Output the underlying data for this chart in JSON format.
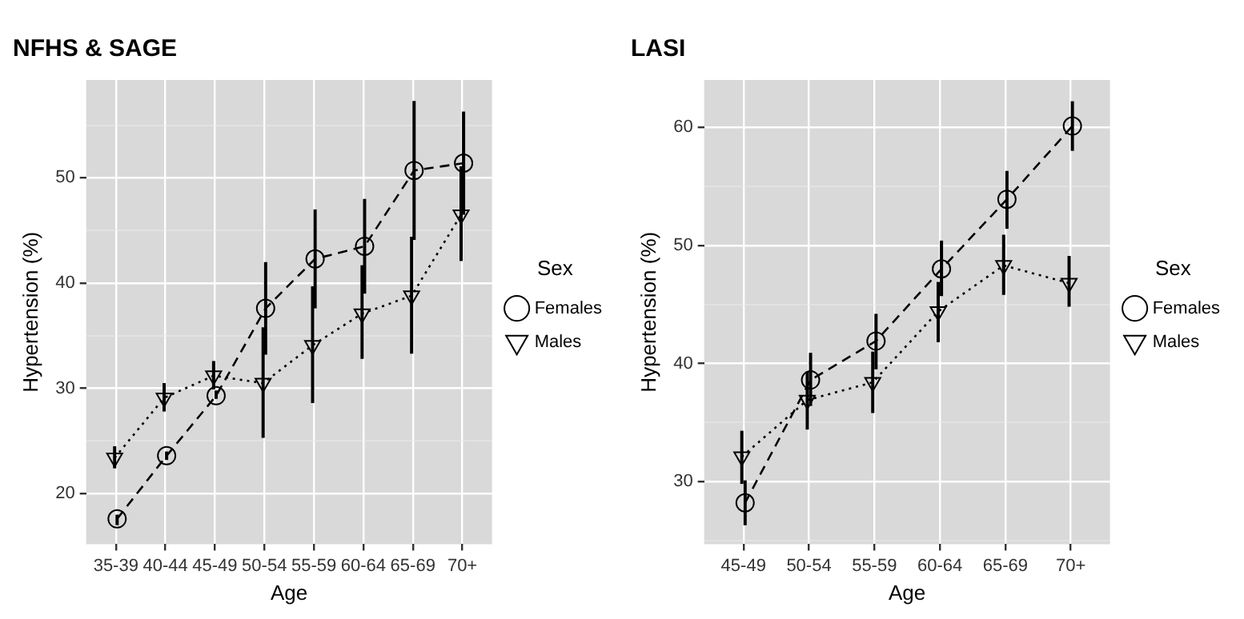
{
  "chart_data": [
    {
      "type": "line",
      "title": "NFHS & SAGE",
      "xlabel": "Age",
      "ylabel": "Hypertension (%)",
      "legend_title": "Sex",
      "legend": "right",
      "grid": true,
      "categories": [
        "35-39",
        "40-44",
        "45-49",
        "50-54",
        "55-59",
        "60-64",
        "65-69",
        "70+"
      ],
      "ylim": [
        15.2,
        59.3
      ],
      "yticks": [
        {
          "value": 20,
          "label": "20"
        },
        {
          "value": 25,
          "label": null
        },
        {
          "value": 30,
          "label": "30"
        },
        {
          "value": 35,
          "label": null
        },
        {
          "value": 40,
          "label": "40"
        },
        {
          "value": 45,
          "label": null
        },
        {
          "value": 50,
          "label": "50"
        },
        {
          "value": 55,
          "label": null
        }
      ],
      "series": [
        {
          "name": "Females",
          "color": "#000000",
          "marker": "circle",
          "line_style": "dashed",
          "values": [
            17.6,
            23.6,
            29.3,
            37.6,
            42.3,
            43.5,
            50.7,
            51.4
          ],
          "errors": [
            [
              17.0,
              18.0
            ],
            [
              23.2,
              24.0
            ],
            [
              29.0,
              29.8
            ],
            [
              33.2,
              42.0
            ],
            [
              37.6,
              47.0
            ],
            [
              39.0,
              48.0
            ],
            [
              44.1,
              57.3
            ],
            [
              46.5,
              56.3
            ]
          ]
        },
        {
          "name": "Males",
          "color": "#000000",
          "marker": "triangle",
          "line_style": "dotted",
          "values": [
            23.4,
            29.1,
            31.2,
            30.5,
            34.1,
            37.1,
            38.8,
            46.5
          ],
          "errors": [
            [
              22.4,
              24.5
            ],
            [
              27.8,
              30.5
            ],
            [
              29.9,
              32.6
            ],
            [
              25.3,
              35.8
            ],
            [
              28.6,
              39.7
            ],
            [
              32.8,
              41.7
            ],
            [
              33.3,
              44.4
            ],
            [
              42.1,
              51.1
            ]
          ]
        }
      ]
    },
    {
      "type": "line",
      "title": "LASI",
      "xlabel": "Age",
      "ylabel": "Hypertension (%)",
      "legend_title": "Sex",
      "legend": "right",
      "grid": true,
      "categories": [
        "45-49",
        "50-54",
        "55-59",
        "60-64",
        "65-69",
        "70+"
      ],
      "ylim": [
        24.7,
        64.0
      ],
      "yticks": [
        {
          "value": 25,
          "label": null
        },
        {
          "value": 30,
          "label": "30"
        },
        {
          "value": 35,
          "label": null
        },
        {
          "value": 40,
          "label": "40"
        },
        {
          "value": 45,
          "label": null
        },
        {
          "value": 50,
          "label": "50"
        },
        {
          "value": 55,
          "label": null
        },
        {
          "value": 60,
          "label": "60"
        }
      ],
      "series": [
        {
          "name": "Females",
          "color": "#000000",
          "marker": "circle",
          "line_style": "dashed",
          "values": [
            28.2,
            38.6,
            41.9,
            48.0,
            53.9,
            60.1
          ],
          "errors": [
            [
              26.3,
              30.1
            ],
            [
              36.4,
              40.9
            ],
            [
              39.5,
              44.2
            ],
            [
              45.7,
              50.4
            ],
            [
              51.4,
              56.3
            ],
            [
              58.0,
              62.2
            ]
          ]
        },
        {
          "name": "Males",
          "color": "#000000",
          "marker": "triangle",
          "line_style": "dotted",
          "values": [
            32.1,
            36.9,
            38.4,
            44.4,
            48.3,
            46.8
          ],
          "errors": [
            [
              29.8,
              34.3
            ],
            [
              34.4,
              39.3
            ],
            [
              35.8,
              41.0
            ],
            [
              41.8,
              46.9
            ],
            [
              45.8,
              50.9
            ],
            [
              44.8,
              49.1
            ]
          ]
        }
      ]
    }
  ]
}
